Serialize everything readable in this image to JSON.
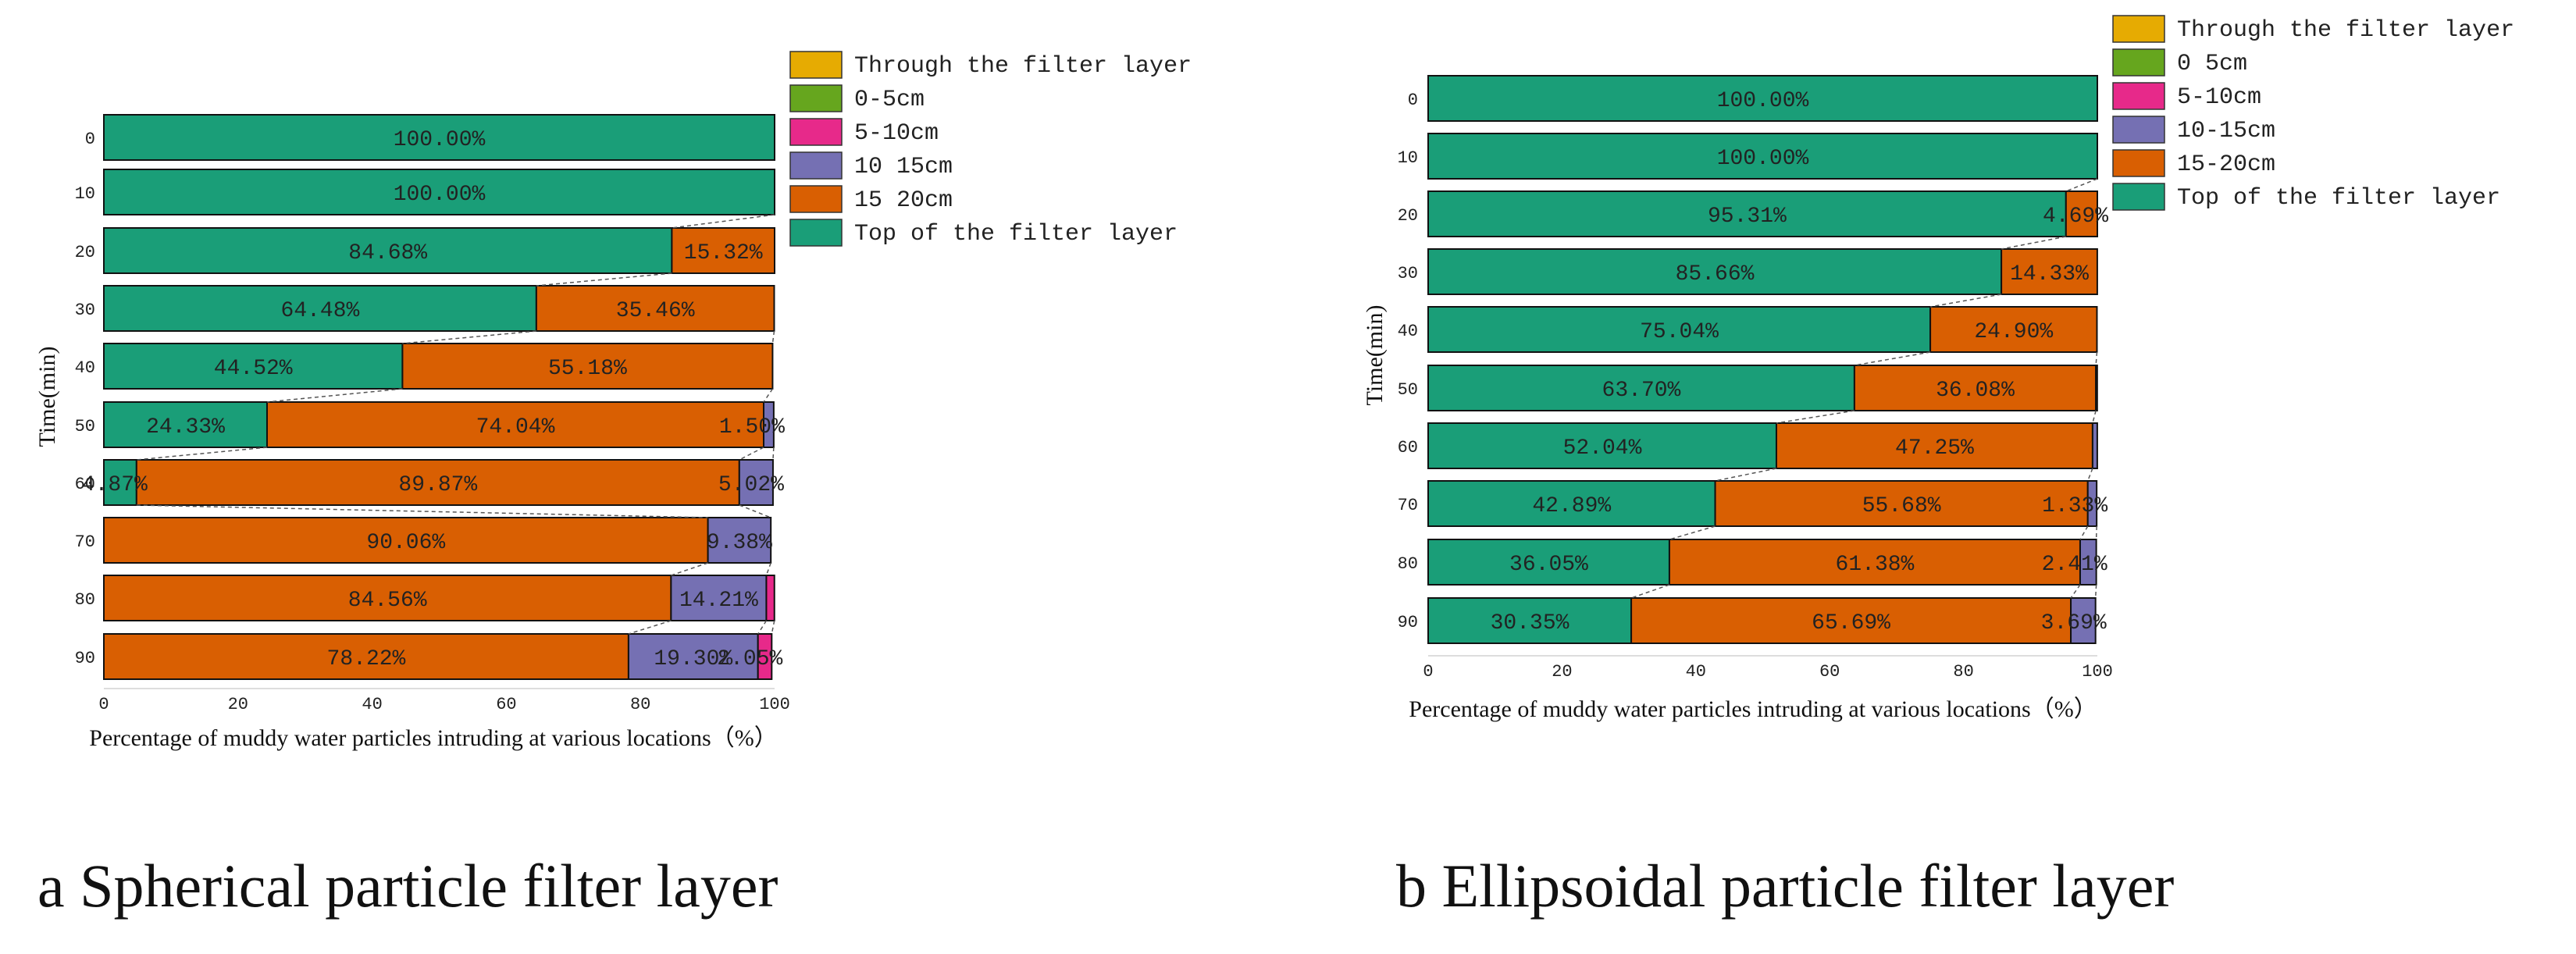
{
  "chart_data": [
    {
      "type": "bar",
      "orientation": "horizontal",
      "stacked": true,
      "panel_caption": "a Spherical particle filter layer",
      "xlabel": "Percentage of muddy water particles intruding at various locations（%）",
      "ylabel": "Time(min)",
      "xlim": [
        0,
        100
      ],
      "xticks": [
        "0",
        "20",
        "40",
        "60",
        "80",
        "100"
      ],
      "categories": [
        "0",
        "10",
        "20",
        "30",
        "40",
        "50",
        "60",
        "70",
        "80",
        "90"
      ],
      "series": [
        {
          "name": "Top of the filter layer",
          "color": "#1a9e78",
          "values": [
            100.0,
            100.0,
            84.68,
            64.48,
            44.52,
            24.33,
            4.87,
            0,
            0,
            0
          ]
        },
        {
          "name": "15 20cm",
          "color": "#d95f02",
          "values": [
            0,
            0,
            15.32,
            35.46,
            55.18,
            74.04,
            89.87,
            90.06,
            84.56,
            78.22
          ]
        },
        {
          "name": "10 15cm",
          "color": "#7570b3",
          "values": [
            0,
            0,
            0,
            0,
            0,
            1.5,
            5.02,
            9.38,
            14.21,
            19.3
          ]
        },
        {
          "name": "5-10cm",
          "color": "#e7298a",
          "values": [
            0,
            0,
            0,
            0,
            0,
            0,
            0,
            0,
            1.2,
            2.05
          ]
        },
        {
          "name": "0-5cm",
          "color": "#66a61e",
          "values": [
            0,
            0,
            0,
            0,
            0,
            0,
            0,
            0,
            0,
            0
          ]
        },
        {
          "name": "Through the filter layer",
          "color": "#e6ab02",
          "values": [
            0,
            0,
            0,
            0,
            0,
            0,
            0,
            0,
            0,
            0
          ]
        }
      ],
      "data_labels": [
        [
          "100.00%"
        ],
        [
          "100.00%"
        ],
        [
          "84.68%",
          "15.32%"
        ],
        [
          "64.48%",
          "35.46%"
        ],
        [
          "44.52%",
          "55.18%"
        ],
        [
          "24.33%",
          "74.04%",
          "1.50%"
        ],
        [
          "4.87%",
          "89.87%",
          "5.02%"
        ],
        [
          "90.06%",
          "9.38%"
        ],
        [
          "84.56%",
          "14.21%"
        ],
        [
          "78.22%",
          "19.30%",
          "2.05%"
        ]
      ],
      "legend_position": "top-right"
    },
    {
      "type": "bar",
      "orientation": "horizontal",
      "stacked": true,
      "panel_caption": "b Ellipsoidal particle filter layer",
      "xlabel": "Percentage of muddy water particles intruding at various locations（%）",
      "ylabel": "Time(min)",
      "xlim": [
        0,
        100
      ],
      "xticks": [
        "0",
        "20",
        "40",
        "60",
        "80",
        "100"
      ],
      "categories": [
        "0",
        "10",
        "20",
        "30",
        "40",
        "50",
        "60",
        "70",
        "80",
        "90"
      ],
      "series": [
        {
          "name": "Top of the filter layer",
          "color": "#1a9e78",
          "values": [
            100.0,
            100.0,
            95.31,
            85.66,
            75.04,
            63.7,
            52.04,
            42.89,
            36.05,
            30.35
          ]
        },
        {
          "name": "15-20cm",
          "color": "#d95f02",
          "values": [
            0,
            0,
            4.69,
            14.33,
            24.9,
            36.08,
            47.25,
            55.68,
            61.38,
            65.69
          ]
        },
        {
          "name": "10-15cm",
          "color": "#7570b3",
          "values": [
            0,
            0,
            0,
            0,
            0,
            0.2,
            0.7,
            1.33,
            2.41,
            3.69
          ]
        },
        {
          "name": "5-10cm",
          "color": "#e7298a",
          "values": [
            0,
            0,
            0,
            0,
            0,
            0,
            0,
            0,
            0,
            0
          ]
        },
        {
          "name": "0 5cm",
          "color": "#66a61e",
          "values": [
            0,
            0,
            0,
            0,
            0,
            0,
            0,
            0,
            0,
            0
          ]
        },
        {
          "name": "Through the filter layer",
          "color": "#e6ab02",
          "values": [
            0,
            0,
            0,
            0,
            0,
            0,
            0,
            0,
            0,
            0
          ]
        }
      ],
      "data_labels": [
        [
          "100.00%"
        ],
        [
          "100.00%"
        ],
        [
          "95.31%",
          "4.69%"
        ],
        [
          "85.66%",
          "14.33%"
        ],
        [
          "75.04%",
          "24.90%"
        ],
        [
          "63.70%",
          "36.08%"
        ],
        [
          "52.04%",
          "47.25%"
        ],
        [
          "42.89%",
          "55.68%",
          "1.33%"
        ],
        [
          "36.05%",
          "61.38%",
          "2.41%"
        ],
        [
          "30.35%",
          "65.69%",
          "3.69%"
        ]
      ],
      "legend_position": "top-right"
    }
  ]
}
